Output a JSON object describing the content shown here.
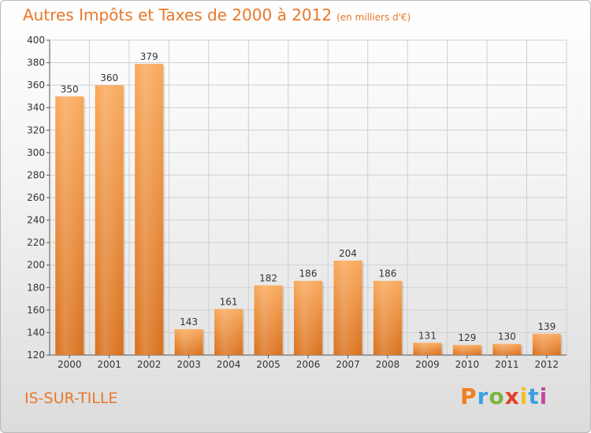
{
  "header": {
    "title": "Autres Impôts et Taxes de 2000 à 2012",
    "unit": "(en milliers d'€)"
  },
  "footer": {
    "city": "IS-SUR-TILLE",
    "logo": "Proxiti",
    "logo_colors": [
      "#f0801e",
      "#3aa0e0",
      "#7ab53a",
      "#e0402a",
      "#f0c020",
      "#3aa0e0",
      "#c04aa0"
    ]
  },
  "colors": {
    "accent": "#e8782a",
    "bar_top": "#f9a85a",
    "bar_bottom": "#d9701c"
  },
  "chart_data": {
    "type": "bar",
    "categories": [
      "2000",
      "2001",
      "2002",
      "2003",
      "2004",
      "2005",
      "2006",
      "2007",
      "2008",
      "2009",
      "2010",
      "2011",
      "2012"
    ],
    "values": [
      350,
      360,
      379,
      143,
      161,
      182,
      186,
      204,
      186,
      131,
      129,
      130,
      139
    ],
    "title": "Autres Impôts et Taxes de 2000 à 2012",
    "xlabel": "",
    "ylabel": "",
    "ylim": [
      120,
      400
    ],
    "yticks": [
      120,
      140,
      160,
      180,
      200,
      220,
      240,
      260,
      280,
      300,
      320,
      340,
      360,
      380,
      400
    ],
    "grid": true,
    "legend": "none"
  }
}
